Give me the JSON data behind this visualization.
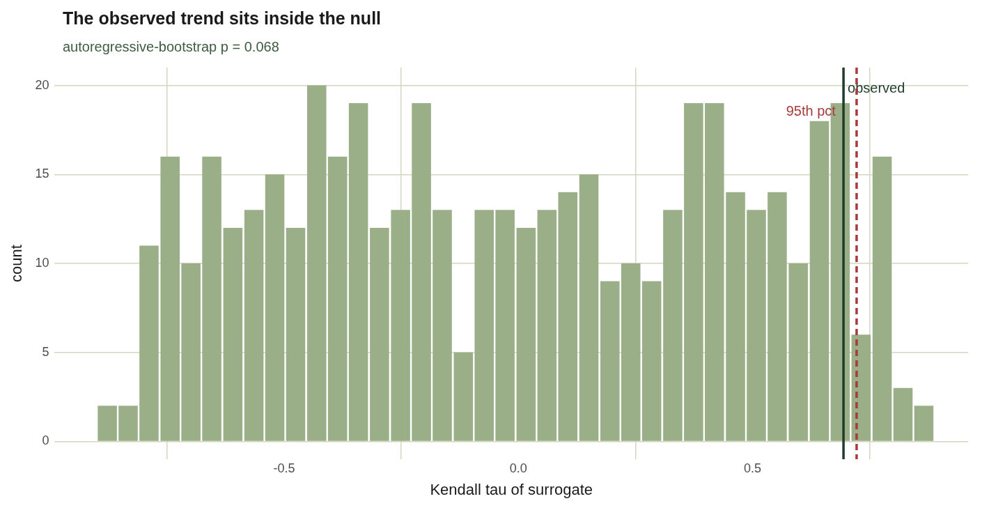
{
  "chart_data": {
    "type": "histogram",
    "title": "The observed trend sits inside the null",
    "subtitle": "autoregressive-bootstrap p = 0.068",
    "xlabel": "Kendall tau of surrogate",
    "ylabel": "count",
    "bins": [
      -0.9,
      -0.855,
      -0.811,
      -0.766,
      -0.721,
      -0.677,
      -0.632,
      -0.587,
      -0.542,
      -0.498,
      -0.453,
      -0.408,
      -0.364,
      -0.319,
      -0.274,
      -0.229,
      -0.185,
      -0.14,
      -0.095,
      -0.051,
      -0.006,
      0.039,
      0.083,
      0.128,
      0.173,
      0.218,
      0.262,
      0.307,
      0.352,
      0.396,
      0.441,
      0.486,
      0.53,
      0.575,
      0.62,
      0.665,
      0.709,
      0.754,
      0.799,
      0.843,
      0.888
    ],
    "values": [
      2,
      2,
      11,
      16,
      10,
      16,
      12,
      13,
      15,
      12,
      20,
      16,
      19,
      12,
      13,
      19,
      13,
      5,
      13,
      13,
      12,
      13,
      14,
      15,
      9,
      10,
      9,
      13,
      19,
      19,
      14,
      13,
      14,
      10,
      18,
      19,
      6,
      16,
      3,
      2
    ],
    "color": "#9aae88",
    "xlim": [
      -0.99,
      0.96
    ],
    "ylim": [
      -1,
      21
    ],
    "xticks": [
      -0.5,
      {
        "value": 0,
        "label": "0.0"
      },
      0.5
    ],
    "yticks": [
      0,
      5,
      10,
      15,
      20
    ],
    "grid": true,
    "legend": false,
    "ref_lines": [
      {
        "axis": "x",
        "value": 0.694,
        "label": "observed",
        "color": "#1f3d2b",
        "line_style": "solid"
      },
      {
        "axis": "x",
        "value": 0.722,
        "label": "95th pct",
        "color": "#a83a3a",
        "line_style": "dashed"
      }
    ]
  }
}
